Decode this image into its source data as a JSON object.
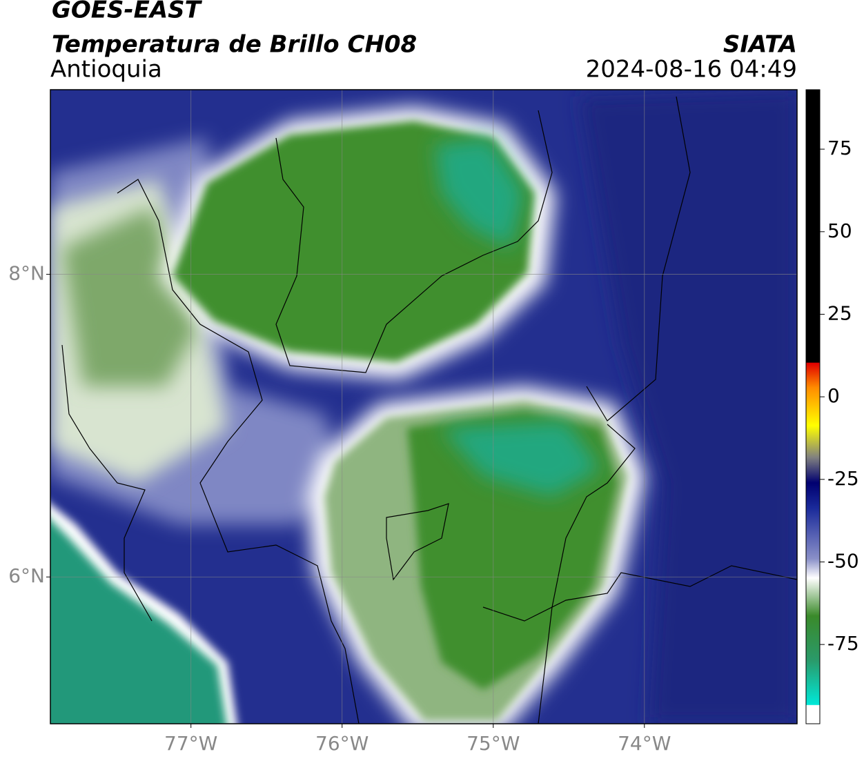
{
  "header": {
    "title": "GOES-EAST",
    "subtitle": "Temperatura de Brillo CH08",
    "region": "Antioquia",
    "source": "SIATA",
    "datetime": "2024-08-16 04:49"
  },
  "map": {
    "xlim": [
      -77.93,
      -72.99
    ],
    "ylim": [
      5.03,
      9.22
    ],
    "xticks": [
      {
        "value": -77,
        "label": "77°W"
      },
      {
        "value": -76,
        "label": "76°W"
      },
      {
        "value": -75,
        "label": "75°W"
      },
      {
        "value": -74,
        "label": "74°W"
      }
    ],
    "yticks": [
      {
        "value": 6,
        "label": "6°N"
      },
      {
        "value": 8,
        "label": "8°N"
      }
    ],
    "grid": true
  },
  "colorbar": {
    "lim": [
      -99,
      93
    ],
    "ticks": [
      75,
      50,
      25,
      0,
      -25,
      -50,
      -75
    ]
  }
}
